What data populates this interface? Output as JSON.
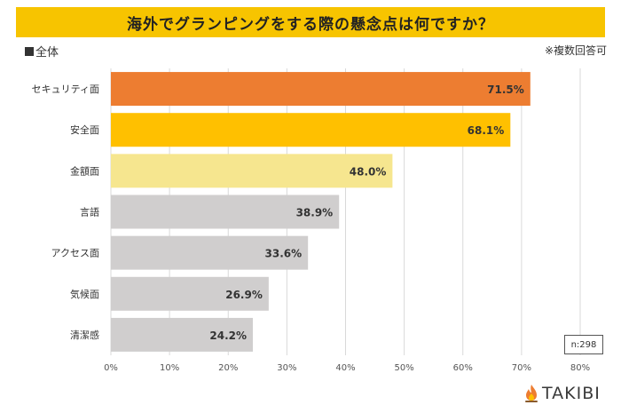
{
  "header": {
    "title": "海外でグランピングをする際の懸念点は何ですか？",
    "subset_label": "全体",
    "note": "※複数回答可"
  },
  "sample": "n:298",
  "brand": {
    "name": "TAKIBI"
  },
  "colors": {
    "title_bg": "#f7c400",
    "grid": "#d9d9d9",
    "axis_text": "#555555",
    "bar_text": "#333333"
  },
  "chart_data": {
    "type": "bar",
    "orientation": "horizontal",
    "title": "海外でグランピングをする際の懸念点は何ですか？",
    "categories": [
      "セキュリティ面",
      "安全面",
      "金額面",
      "言語",
      "アクセス面",
      "気候面",
      "清潔感"
    ],
    "values": [
      71.5,
      68.1,
      48.0,
      38.9,
      33.6,
      26.9,
      24.2
    ],
    "value_labels": [
      "71.5%",
      "68.1%",
      "48.0%",
      "38.9%",
      "33.6%",
      "26.9%",
      "24.2%"
    ],
    "bar_colors": [
      "#ed7d31",
      "#ffc000",
      "#f6e68f",
      "#d0cece",
      "#d0cece",
      "#d0cece",
      "#d0cece"
    ],
    "xlim": [
      0,
      80
    ],
    "xticks": [
      "0%",
      "10%",
      "20%",
      "30%",
      "40%",
      "50%",
      "60%",
      "70%",
      "80%"
    ],
    "xlabel": "",
    "ylabel": "",
    "grid": true
  }
}
